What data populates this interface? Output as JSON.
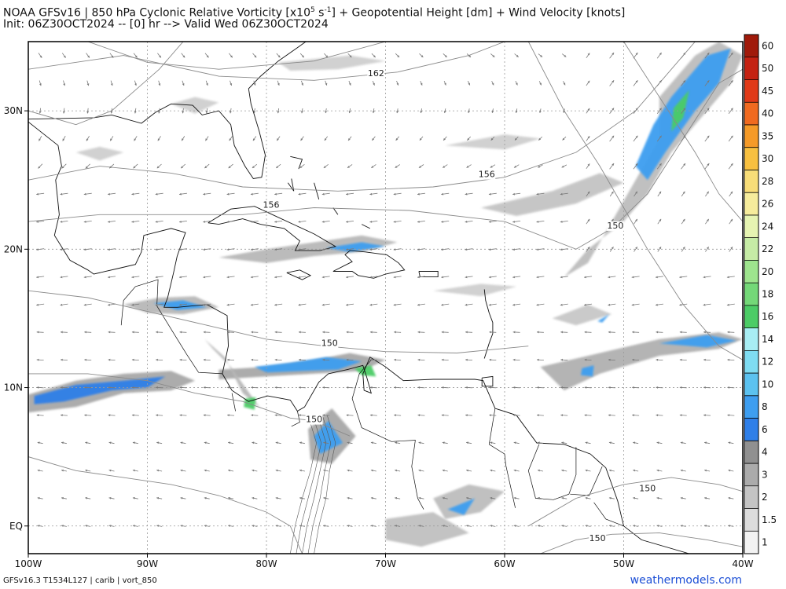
{
  "header": {
    "model": "NOAA GFSv16",
    "separator": "|",
    "title_prefix": "850 hPa Cyclonic Relative Vorticity [x10",
    "title_exp": "5",
    "title_unit_rest": " s",
    "title_exp2": "-1",
    "title_suffix": "] + Geopotential Height [dm] + Wind Velocity [knots]",
    "init_line": "Init: 06Z30OCT2024 -- [0] hr --> Valid Wed 06Z30OCT2024"
  },
  "map": {
    "lon_labels": [
      "100W",
      "90W",
      "80W",
      "70W",
      "60W",
      "50W",
      "40W"
    ],
    "lat_labels": [
      "30N",
      "20N",
      "10N",
      "EQ"
    ],
    "height_labels": [
      {
        "text": "162",
        "lon": -70.8,
        "lat": 32.5
      },
      {
        "text": "156",
        "lon": -61.5,
        "lat": 25.2
      },
      {
        "text": "156",
        "lon": -79.6,
        "lat": 23.0
      },
      {
        "text": "150",
        "lon": -50.7,
        "lat": 21.5
      },
      {
        "text": "150",
        "lon": -74.7,
        "lat": 13.0
      },
      {
        "text": "150",
        "lon": -76.0,
        "lat": 7.5
      },
      {
        "text": "150",
        "lon": -48.0,
        "lat": 2.5
      },
      {
        "text": "150",
        "lon": -52.2,
        "lat": -1.1
      }
    ]
  },
  "colorbar": {
    "ticks": [
      "60",
      "50",
      "45",
      "40",
      "35",
      "30",
      "28",
      "26",
      "24",
      "22",
      "20",
      "18",
      "16",
      "14",
      "12",
      "10",
      "8",
      "6",
      "4",
      "3",
      "2",
      "1.5",
      "1"
    ],
    "colors": [
      "#a01a0a",
      "#c42212",
      "#e03a18",
      "#f06a20",
      "#f59a28",
      "#f8c040",
      "#f8dd78",
      "#f6ec9c",
      "#e6f4b2",
      "#c6eca6",
      "#9ee48e",
      "#74d878",
      "#4ccc66",
      "#a8eef4",
      "#7fdcf2",
      "#5cc2f0",
      "#3e9ef0",
      "#2f7fe8",
      "#909090",
      "#ababab",
      "#c4c4c4",
      "#dcdcdc",
      "#f2f2f2"
    ]
  },
  "footer": {
    "left": "GFSv16.3 T1534L127 | carib | vort_850",
    "right": "weathermodels.com"
  }
}
